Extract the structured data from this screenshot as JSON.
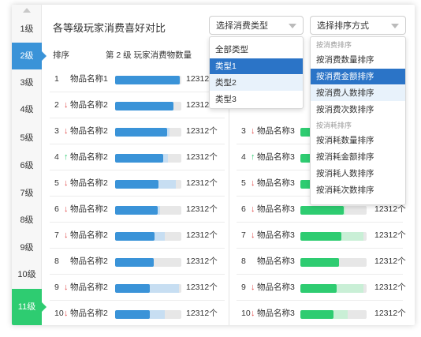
{
  "title": "各等级玩家消费喜好对比",
  "filters": {
    "type_select": "选择消费类型",
    "sort_select": "选择排序方式"
  },
  "colors": {
    "blue": "#3a93d8",
    "blue_light": "#c7def2",
    "green": "#2ecc71",
    "green_light": "#c9efd6",
    "selected": "#2b74c7"
  },
  "levels": [
    "1级",
    "2级",
    "3级",
    "4级",
    "5级",
    "6级",
    "7级",
    "8级",
    "9级",
    "10级",
    "11级"
  ],
  "left_panel": {
    "header_rank": "排序",
    "header_title": "第 2 级 玩家消费物数量",
    "rows": [
      {
        "rank": "1",
        "arrow": "",
        "name": "物品名称1",
        "count": "12312个",
        "share": 0.98,
        "secondary": 0.98
      },
      {
        "rank": "2",
        "arrow": "down",
        "name": "物品名称2",
        "count": "12312个",
        "share": 0.88,
        "secondary": 0.88
      },
      {
        "rank": "3",
        "arrow": "down",
        "name": "物品名称2",
        "count": "12312个",
        "share": 0.78,
        "secondary": 0.82
      },
      {
        "rank": "4",
        "arrow": "up",
        "name": "物品名称2",
        "count": "12312个",
        "share": 0.73,
        "secondary": 0.8
      },
      {
        "rank": "5",
        "arrow": "down",
        "name": "物品名称2",
        "count": "12312个",
        "share": 0.66,
        "secondary": 0.92
      },
      {
        "rank": "6",
        "arrow": "down",
        "name": "物品名称2",
        "count": "12312个",
        "share": 0.64,
        "secondary": 0.68
      },
      {
        "rank": "7",
        "arrow": "down",
        "name": "物品名称2",
        "count": "12312个",
        "share": 0.6,
        "secondary": 0.75
      },
      {
        "rank": "8",
        "arrow": "",
        "name": "物品名称2",
        "count": "12312个",
        "share": 0.58,
        "secondary": 0.58
      },
      {
        "rank": "9",
        "arrow": "down",
        "name": "物品名称2",
        "count": "12312个",
        "share": 0.52,
        "secondary": 0.96
      },
      {
        "rank": "10",
        "arrow": "down",
        "name": "物品名称2",
        "count": "12312个",
        "share": 0.52,
        "secondary": 0.75
      }
    ]
  },
  "right_panel": {
    "rows": [
      {
        "rank": "3",
        "arrow": "down",
        "name": "物品名称3",
        "count": "12312个",
        "share": 0.8,
        "secondary": 0.8
      },
      {
        "rank": "4",
        "arrow": "up",
        "name": "物品名称3",
        "count": "12312个",
        "share": 0.75,
        "secondary": 0.82
      },
      {
        "rank": "5",
        "arrow": "down",
        "name": "物品名称3",
        "count": "12312个",
        "share": 0.7,
        "secondary": 0.78
      },
      {
        "rank": "6",
        "arrow": "down",
        "name": "物品名称3",
        "count": "12312个",
        "share": 0.65,
        "secondary": 0.68
      },
      {
        "rank": "7",
        "arrow": "down",
        "name": "物品名称3",
        "count": "12312个",
        "share": 0.62,
        "secondary": 0.95
      },
      {
        "rank": "8",
        "arrow": "",
        "name": "物品名称3",
        "count": "12312个",
        "share": 0.58,
        "secondary": 0.58
      },
      {
        "rank": "9",
        "arrow": "down",
        "name": "物品名称3",
        "count": "12312个",
        "share": 0.55,
        "secondary": 0.95
      },
      {
        "rank": "10",
        "arrow": "down",
        "name": "物品名称3",
        "count": "12312个",
        "share": 0.5,
        "secondary": 0.72
      }
    ]
  },
  "type_menu": {
    "items": [
      "全部类型",
      "类型1",
      "类型2",
      "类型3"
    ],
    "selected": 1,
    "hover": 2
  },
  "sort_menu": {
    "group1_label": "按消费排序",
    "group1": [
      "按消费数量排序",
      "按消费金额排序",
      "按消费人数排序",
      "按消费次数排序"
    ],
    "group2_label": "按消耗排序",
    "group2": [
      "按消耗数量排序",
      "按消耗金额排序",
      "按消耗人数排序",
      "按消耗次数排序"
    ],
    "selected": "按消费金额排序",
    "hover": "按消费人数排序"
  }
}
